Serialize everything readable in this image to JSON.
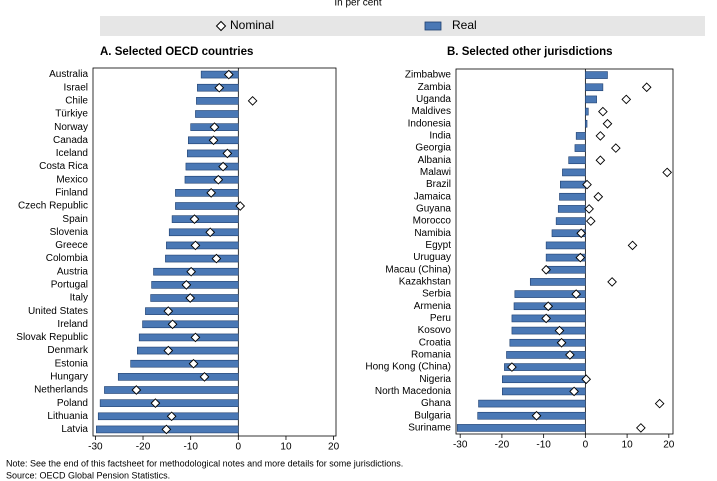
{
  "subtitle": "In per cent",
  "note": "Note: See the end of this factsheet for methodological notes and more details for some jurisdictions.",
  "source": "Source: OECD Global Pension Statistics.",
  "chart_data": [
    {
      "type": "bar",
      "orientation": "horizontal",
      "title": "A. Selected OECD countries",
      "categories": [
        "Australia",
        "Israel",
        "Chile",
        "Türkiye",
        "Norway",
        "Canada",
        "Iceland",
        "Costa Rica",
        "Mexico",
        "Finland",
        "Czech Republic",
        "Spain",
        "Slovenia",
        "Greece",
        "Colombia",
        "Austria",
        "Portugal",
        "Italy",
        "United States",
        "Ireland",
        "Slovak Republic",
        "Denmark",
        "Estonia",
        "Hungary",
        "Netherlands",
        "Poland",
        "Lithuania",
        "Latvia"
      ],
      "series": [
        {
          "name": "Nominal",
          "color": "#ffffff",
          "marker": "diamond",
          "values": [
            -2,
            -4,
            3,
            null,
            -5,
            -5.2,
            -2.3,
            -3.2,
            -4.2,
            -5.7,
            0.4,
            -9.2,
            -5.9,
            -9,
            -4.6,
            -9.9,
            -10.9,
            -10.1,
            -14.7,
            -13.8,
            -9,
            -14.7,
            -9.4,
            -7.1,
            -21.4,
            -17.4,
            -14,
            -15.1
          ]
        },
        {
          "name": "Real",
          "color": "#4a78b5",
          "marker": "bar",
          "values": [
            -7.8,
            -8.6,
            -8.8,
            -9,
            -10,
            -10.5,
            -10.7,
            -11,
            -11.2,
            -13.2,
            -13.2,
            -13.9,
            -14.5,
            -15.1,
            -15.3,
            -17.8,
            -18.2,
            -18.4,
            -19.5,
            -20.1,
            -20.8,
            -21.2,
            -22.6,
            -25.2,
            -28.1,
            -29,
            -29.4,
            -29.8
          ]
        }
      ],
      "xlim": [
        -30.5,
        20.5
      ],
      "xticks": [
        -30,
        -20,
        -10,
        0,
        10,
        20
      ]
    },
    {
      "type": "bar",
      "orientation": "horizontal",
      "title": "B. Selected other jurisdictions",
      "categories": [
        "Zimbabwe",
        "Zambia",
        "Uganda",
        "Maldives",
        "Indonesia",
        "India",
        "Georgia",
        "Albania",
        "Malawi",
        "Brazil",
        "Jamaica",
        "Guyana",
        "Morocco",
        "Namibia",
        "Egypt",
        "Uruguay",
        "Macau (China)",
        "Kazakhstan",
        "Serbia",
        "Armenia",
        "Peru",
        "Kosovo",
        "Croatia",
        "Romania",
        "Hong Kong (China)",
        "Nigeria",
        "North Macedonia",
        "Ghana",
        "Bulgaria",
        "Suriname"
      ],
      "series": [
        {
          "name": "Nominal",
          "color": "#ffffff",
          "marker": "diamond",
          "values": [
            null,
            14.7,
            9.8,
            4.2,
            5.3,
            3.6,
            7.3,
            3.6,
            19.6,
            0.4,
            3.1,
            0.9,
            1.3,
            -1,
            11.3,
            -1.2,
            -9.4,
            6.4,
            -2.2,
            -8.9,
            -9.4,
            -6.2,
            -5.7,
            -3.7,
            -17.6,
            0.2,
            -2.7,
            17.8,
            -11.7,
            13.3
          ]
        },
        {
          "name": "Real",
          "color": "#4a78b5",
          "marker": "bar",
          "values": [
            5.3,
            4.2,
            2.7,
            0.7,
            0.4,
            -2.2,
            -2.5,
            -4,
            -5.5,
            -6,
            -6.2,
            -6.5,
            -7,
            -8,
            -9.4,
            -9.4,
            -9.7,
            -13.2,
            -16.9,
            -17.1,
            -17.6,
            -17.6,
            -18.1,
            -18.9,
            -19.4,
            -19.9,
            -19.9,
            -25.6,
            -25.8,
            -30.7
          ]
        }
      ],
      "xlim": [
        -31,
        21
      ],
      "xticks": [
        -30,
        -20,
        -10,
        0,
        10,
        20
      ]
    }
  ]
}
